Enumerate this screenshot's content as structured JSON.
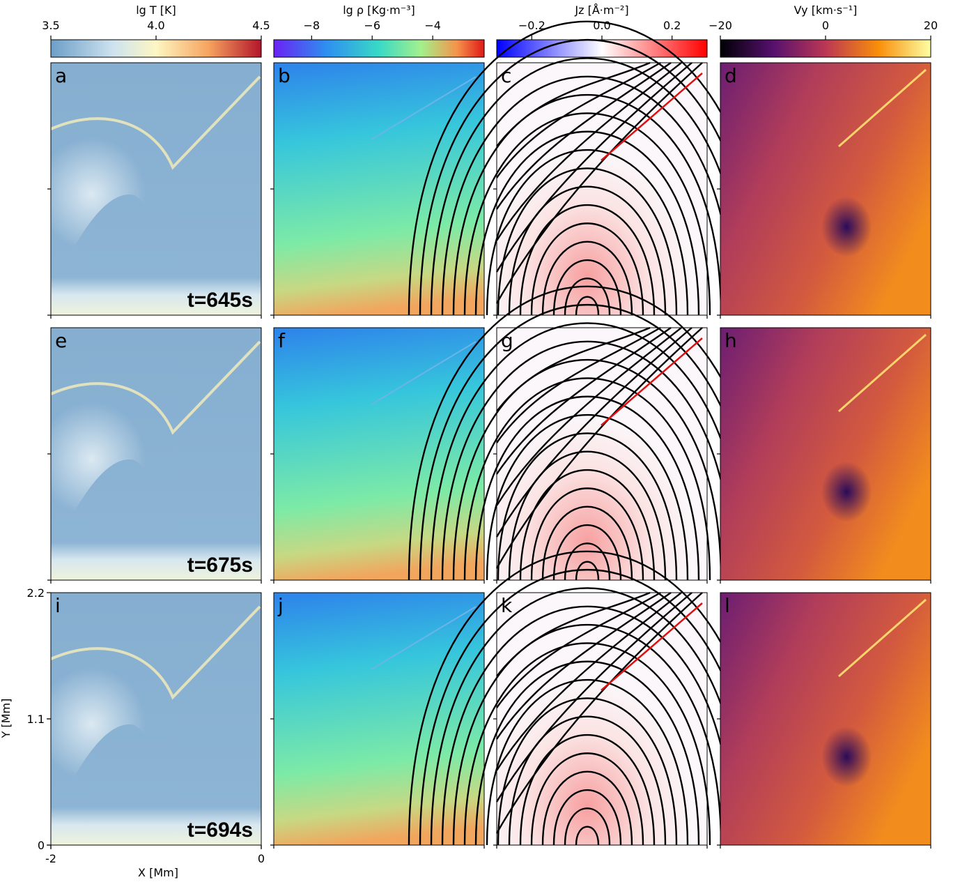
{
  "colorbars": [
    {
      "label": "lg T [K]",
      "lim": [
        3.5,
        4.5
      ],
      "ticks": [
        3.5,
        {
          "value": 4,
          "label": "4.0"
        },
        4.5
      ]
    },
    {
      "label": "lg ρ [Kg·m⁻³]",
      "lim": [
        -9.25,
        -2.3
      ],
      "ticks": [
        {
          "value": -8,
          "label": "−8"
        },
        {
          "value": -6,
          "label": "−6"
        },
        {
          "value": -4,
          "label": "−4"
        }
      ]
    },
    {
      "label": "Jz [Å·m⁻²]",
      "lim": [
        -0.3,
        0.3
      ],
      "ticks": [
        {
          "value": -0.2,
          "label": "−0.2"
        },
        {
          "value": 0,
          "label": "0.0"
        },
        {
          "value": 0.2,
          "label": "0.2"
        }
      ]
    },
    {
      "label": "Vy [km·s⁻¹]",
      "lim": [
        -20,
        20
      ],
      "ticks": [
        {
          "value": -20,
          "label": "−20"
        },
        0,
        20
      ]
    }
  ],
  "panels": [
    {
      "letter": "a",
      "time": "t=645s"
    },
    {
      "letter": "b"
    },
    {
      "letter": "c"
    },
    {
      "letter": "d"
    },
    {
      "letter": "e",
      "time": "t=675s"
    },
    {
      "letter": "f"
    },
    {
      "letter": "g"
    },
    {
      "letter": "h"
    },
    {
      "letter": "i",
      "time": "t=694s"
    },
    {
      "letter": "j"
    },
    {
      "letter": "k"
    },
    {
      "letter": "l"
    }
  ],
  "axes": {
    "xlabel": "X [Mm]",
    "ylabel": "Y [Mm]",
    "xlim": [
      -2,
      0
    ],
    "xticks": [
      -2,
      0
    ],
    "ylim": [
      0,
      2.2
    ],
    "yticks": [
      0,
      1.1,
      2.2
    ]
  }
}
